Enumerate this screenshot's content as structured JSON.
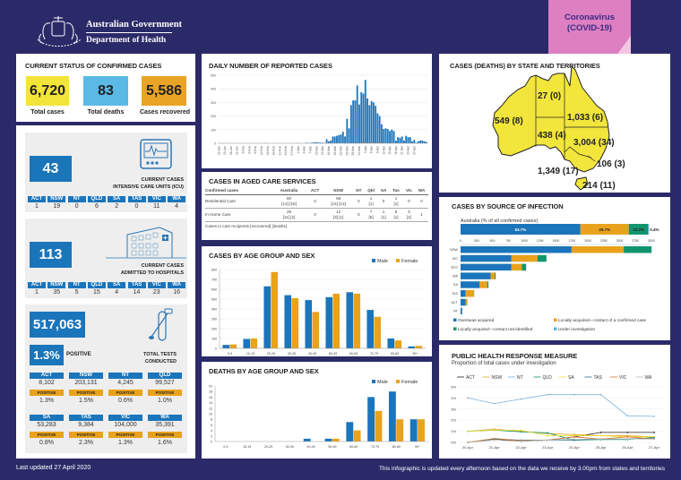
{
  "header": {
    "gov": "Australian Government",
    "dept": "Department of Health",
    "badge_line1": "Coronavirus",
    "badge_line2": "(COVID-19)"
  },
  "status": {
    "title": "CURRENT STATUS OF CONFIRMED CASES",
    "total_cases": "6,720",
    "total_cases_label": "Total cases",
    "total_deaths": "83",
    "total_deaths_label": "Total deaths",
    "recovered": "5,586",
    "recovered_label": "Cases recovered"
  },
  "icu": {
    "value": "43",
    "label1": "CURRENT CASES",
    "label2": "INTENSIVE CARE UNITS (ICU)",
    "states": [
      {
        "s": "ACT",
        "v": "1"
      },
      {
        "s": "NSW",
        "v": "19"
      },
      {
        "s": "NT",
        "v": "0"
      },
      {
        "s": "QLD",
        "v": "6"
      },
      {
        "s": "SA",
        "v": "2"
      },
      {
        "s": "TAS",
        "v": "0"
      },
      {
        "s": "VIC",
        "v": "11"
      },
      {
        "s": "WA",
        "v": "4"
      }
    ]
  },
  "hospital": {
    "value": "113",
    "label1": "CURRENT CASES",
    "label2": "ADMITTED TO HOSPITALS",
    "states": [
      {
        "s": "ACT",
        "v": "1"
      },
      {
        "s": "NSW",
        "v": "35"
      },
      {
        "s": "NT",
        "v": "5"
      },
      {
        "s": "QLD",
        "v": "15"
      },
      {
        "s": "SA",
        "v": "4"
      },
      {
        "s": "TAS",
        "v": "14"
      },
      {
        "s": "VIC",
        "v": "23"
      },
      {
        "s": "WA",
        "v": "16"
      }
    ]
  },
  "tests": {
    "value": "517,063",
    "positive_pct": "1.3%",
    "positive_label": "POSITIVE",
    "label1": "TOTAL TESTS",
    "label2": "CONDUCTED",
    "pos_tag": "POSITIVE",
    "states": [
      {
        "s": "ACT",
        "v": "8,102",
        "p": "1.3%"
      },
      {
        "s": "NSW",
        "v": "203,131",
        "p": "1.5%"
      },
      {
        "s": "NT",
        "v": "4,245",
        "p": "0.6%"
      },
      {
        "s": "QLD",
        "v": "99,527",
        "p": "1.0%"
      },
      {
        "s": "SA",
        "v": "53,283",
        "p": "0.8%"
      },
      {
        "s": "TAS",
        "v": "9,384",
        "p": "2.3%"
      },
      {
        "s": "VIC",
        "v": "104,000",
        "p": "1.3%"
      },
      {
        "s": "WA",
        "v": "35,391",
        "p": "1.6%"
      }
    ]
  },
  "aged_care": {
    "title": "CASES IN AGED CARE SERVICES",
    "headers": [
      "Confirmed cases",
      "Australia",
      "ACT",
      "NSW",
      "NT",
      "Qld",
      "SA",
      "Tas",
      "Vic",
      "WA"
    ],
    "rows": [
      {
        "label": "Residential Care",
        "cells": [
          [
            "60",
            "[14] [16]"
          ],
          [
            "0",
            ""
          ],
          [
            "58",
            "[14] [14]"
          ],
          [
            "0",
            ""
          ],
          [
            "1",
            "[1]"
          ],
          [
            "0",
            ""
          ],
          [
            "1",
            "[1]"
          ],
          [
            "0",
            ""
          ],
          [
            "0",
            ""
          ]
        ]
      },
      {
        "label": "In Home Care",
        "cells": [
          [
            "29",
            "[11] [2]"
          ],
          [
            "0",
            ""
          ],
          [
            "12",
            "[3] [1]"
          ],
          [
            "0",
            ""
          ],
          [
            "7",
            "[5]"
          ],
          [
            "1",
            "[1]"
          ],
          [
            "5",
            "[1]"
          ],
          [
            "3",
            "[2]"
          ],
          [
            "1",
            ""
          ]
        ]
      }
    ],
    "note": "Cases in care recipients [recovered] [deaths]"
  },
  "map": {
    "title": "CASES (DEATHS) BY STATE AND TERRITORIES",
    "fill": "#f2e53c",
    "states": [
      {
        "s": "WA",
        "t": "549 (8)"
      },
      {
        "s": "NT",
        "t": "27 (0)"
      },
      {
        "s": "QLD",
        "t": "1,033 (6)"
      },
      {
        "s": "SA",
        "t": "438 (4)"
      },
      {
        "s": "NSW",
        "t": "3,004 (34)"
      },
      {
        "s": "ACT",
        "t": "106 (3)"
      },
      {
        "s": "VIC",
        "t": "1,349 (17)"
      },
      {
        "s": "TAS",
        "t": "214 (11)"
      }
    ]
  },
  "footer": {
    "updated": "Last updated 27 April 2020",
    "note": "This infographic is updated every afternoon based on the data we receive by 3.00pm from states and territories"
  },
  "colors": {
    "blue": "#1b75bb",
    "orange": "#e9a21c",
    "green": "#12956f",
    "lightblue": "#5bb9e6",
    "yellow": "#f3e43a",
    "background": "#2b2a69"
  },
  "chart_data": [
    {
      "id": "daily",
      "type": "bar",
      "title": "DAILY NUMBER OF REPORTED CASES",
      "ylim": [
        0,
        500
      ],
      "yticks": [
        0,
        100,
        200,
        300,
        400,
        500
      ],
      "grid": true,
      "values": [
        0,
        0,
        0,
        0,
        1,
        0,
        0,
        0,
        0,
        0,
        0,
        0,
        0,
        0,
        0,
        0,
        0,
        0,
        0,
        0,
        0,
        0,
        0,
        3,
        0,
        0,
        0,
        0,
        0,
        0,
        0,
        0,
        0,
        0,
        0,
        0,
        0,
        0,
        0,
        2,
        0,
        0,
        0,
        4,
        2,
        3,
        5,
        7,
        8,
        6,
        5,
        4,
        3,
        30,
        15,
        20,
        50,
        50,
        55,
        60,
        65,
        85,
        50,
        180,
        110,
        280,
        315,
        315,
        425,
        285,
        375,
        365,
        465,
        330,
        280,
        310,
        300,
        275,
        220,
        200,
        140,
        105,
        110,
        105,
        90,
        100,
        90,
        20,
        45,
        40,
        50,
        20,
        55,
        45,
        45,
        15,
        25,
        5,
        15,
        20,
        20,
        15,
        10
      ],
      "xticks": [
        "22-Jan",
        "25-Jan",
        "28-Jan",
        "31-Jan",
        "3-Feb",
        "6-Feb",
        "9-Feb",
        "12-Feb",
        "15-Feb",
        "18-Feb",
        "21-Feb",
        "24-Feb",
        "27-Feb",
        "1-Mar",
        "4-Mar",
        "7-Mar",
        "10-Mar",
        "13-Mar",
        "16-Mar",
        "19-Mar",
        "22-Mar",
        "25-Mar",
        "28-Mar",
        "31-Mar",
        "3-Apr",
        "6-Apr",
        "9-Apr",
        "12-Apr",
        "15-Apr",
        "18-Apr",
        "21-Apr",
        "24-Apr",
        "27-Apr"
      ]
    },
    {
      "id": "age",
      "type": "bar",
      "title": "CASES BY AGE GROUP AND SEX",
      "ylim": [
        0,
        800
      ],
      "yticks": [
        0,
        100,
        200,
        300,
        400,
        500,
        600,
        700,
        800
      ],
      "grid": true,
      "legend": "top-right",
      "categories": [
        "0-9",
        "10-19",
        "20-29",
        "30-39",
        "40-49",
        "50-59",
        "60-69",
        "70-79",
        "80-89",
        "90+"
      ],
      "series": [
        {
          "name": "Male",
          "values": [
            35,
            95,
            630,
            540,
            490,
            520,
            570,
            390,
            100,
            20
          ]
        },
        {
          "name": "Female",
          "values": [
            40,
            100,
            775,
            510,
            370,
            555,
            555,
            320,
            80,
            25
          ]
        }
      ]
    },
    {
      "id": "deaths",
      "type": "bar",
      "title": "DEATHS BY AGE GROUP AND SEX",
      "ylim": [
        0,
        20
      ],
      "yticks": [
        0,
        2,
        4,
        6,
        8,
        10,
        12,
        14,
        16,
        18,
        20
      ],
      "grid": false,
      "legend": "top-right",
      "categories": [
        "0-9",
        "10-19",
        "20-29",
        "30-39",
        "40-49",
        "50-59",
        "60-69",
        "70-79",
        "80-89",
        "90+"
      ],
      "series": [
        {
          "name": "Male",
          "values": [
            0,
            0,
            0,
            0,
            1,
            1,
            7,
            16,
            18,
            8
          ]
        },
        {
          "name": "Female",
          "values": [
            0,
            0,
            0,
            0,
            0,
            1,
            4,
            11,
            8,
            8
          ]
        }
      ]
    },
    {
      "id": "source",
      "type": "bar",
      "title": "CASES BY SOURCE OF INFECTION",
      "subtitle": "Australia (% of all confirmed cases)",
      "australia_pct": [
        "63.7%",
        "25.7%",
        "10.3%",
        "0.4%"
      ],
      "australia_values": [
        63.7,
        25.7,
        10.3,
        0.4
      ],
      "xlim": [
        0,
        3000
      ],
      "xticks": [
        0,
        250,
        500,
        750,
        1000,
        1250,
        1500,
        1750,
        2000,
        2250,
        2500,
        2750,
        3000
      ],
      "categories": [
        "NSW",
        "VIC",
        "QLD",
        "WA",
        "SA",
        "TAS",
        "ACT",
        "NT"
      ],
      "series": [
        {
          "name": "Overseas acquired",
          "values": [
            1745,
            800,
            800,
            475,
            300,
            80,
            80,
            25
          ]
        },
        {
          "name": "Locally acquired—contact of a confirmed case",
          "values": [
            820,
            410,
            165,
            60,
            120,
            130,
            20,
            2
          ]
        },
        {
          "name": "Locally acquired—contact not identified",
          "values": [
            435,
            140,
            65,
            15,
            18,
            4,
            6,
            0
          ]
        },
        {
          "name": "Under investigation",
          "values": [
            4,
            0,
            3,
            0,
            0,
            0,
            0,
            0
          ]
        }
      ]
    },
    {
      "id": "response",
      "type": "line",
      "title": "PUBLIC HEALTH RESPONSE MEASURE",
      "subtitle": "Proportion of total cases under investigation",
      "ylim": [
        0,
        5
      ],
      "yticks": [
        "0%",
        "1%",
        "2%",
        "3%",
        "4%",
        "5%"
      ],
      "legend": "top",
      "x": [
        "20-Apr",
        "21-Apr",
        "22-Apr",
        "23-Apr",
        "24-Apr",
        "25-Apr",
        "26-Apr",
        "27-Apr"
      ],
      "series": [
        {
          "name": "ACT",
          "color": "#222222",
          "values": [
            0,
            0.3,
            0.1,
            0.2,
            0.5,
            0.9,
            0.9,
            0.9
          ]
        },
        {
          "name": "NSW",
          "color": "#e9a21c",
          "values": [
            1.0,
            1.2,
            1.0,
            0.8,
            0.7,
            0.6,
            0.6,
            0.5
          ]
        },
        {
          "name": "NT",
          "color": "#7fb2d9",
          "values": [
            4.0,
            3.5,
            3.9,
            4.3,
            4.3,
            4.3,
            2.4,
            2.35
          ]
        },
        {
          "name": "QLD",
          "color": "#12956f",
          "values": [
            1.0,
            1.1,
            0.95,
            0.85,
            0.2,
            0.25,
            0.25,
            0.45
          ]
        },
        {
          "name": "SA",
          "color": "#e8e23a",
          "values": [
            1.0,
            1.1,
            1.1,
            0.6,
            0.6,
            0.6,
            0.5,
            0.5
          ]
        },
        {
          "name": "TAS",
          "color": "#1f6f86",
          "values": [
            0,
            0.3,
            0.2,
            0.2,
            0.2,
            0.3,
            0.3,
            0.4
          ]
        },
        {
          "name": "VIC",
          "color": "#d9772a",
          "values": [
            0,
            0.35,
            0.15,
            0.2,
            0.5,
            0.3,
            0.5,
            0.3
          ]
        },
        {
          "name": "WA",
          "color": "#bbbbbb",
          "values": [
            0,
            0.2,
            0.1,
            0.2,
            0.3,
            0.3,
            0.3,
            0.3
          ]
        }
      ]
    }
  ]
}
